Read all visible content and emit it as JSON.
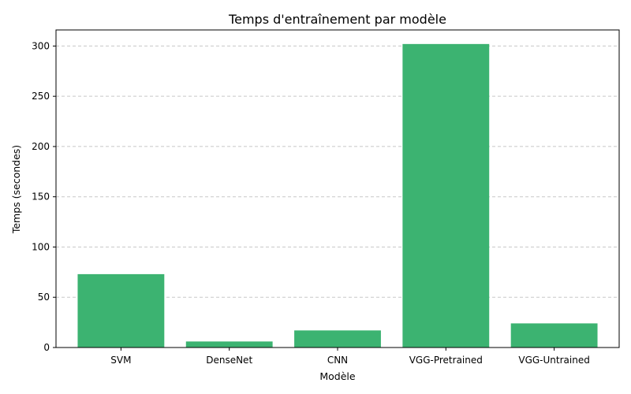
{
  "chart_data": {
    "type": "bar",
    "title": "Temps d'entraînement par modèle",
    "xlabel": "Modèle",
    "ylabel": "Temps (secondes)",
    "categories": [
      "SVM",
      "DenseNet",
      "CNN",
      "VGG-Pretrained",
      "VGG-Untrained"
    ],
    "values": [
      73,
      6,
      17,
      302,
      24
    ],
    "ylim": [
      0,
      316
    ],
    "yticks": [
      0,
      50,
      100,
      150,
      200,
      250,
      300
    ],
    "grid": "y-dashed",
    "bar_color": "#3cb371"
  }
}
